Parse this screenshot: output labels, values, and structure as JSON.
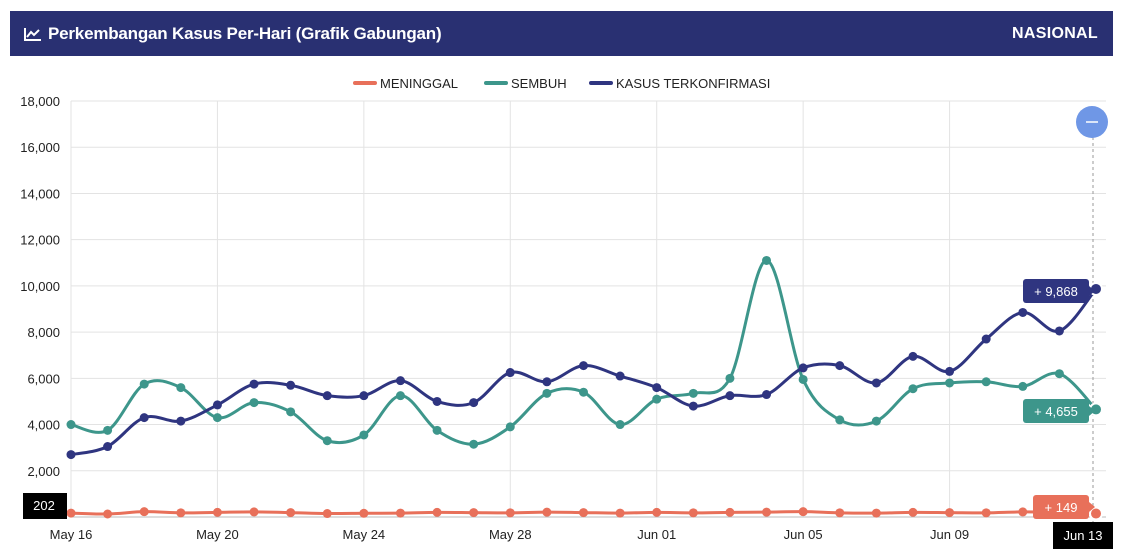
{
  "header": {
    "title": "Perkembangan Kasus Per-Hari (Grafik Gabungan)",
    "title_icon": "line-chart-icon",
    "region": "NASIONAL"
  },
  "zoom_button": {
    "icon": "minus-icon",
    "color": "#6f97e6"
  },
  "chart_data": {
    "type": "line",
    "title": "Perkembangan Kasus Per-Hari (Grafik Gabungan)",
    "categories": [
      "May 16",
      "May 17",
      "May 18",
      "May 19",
      "May 20",
      "May 21",
      "May 22",
      "May 23",
      "May 24",
      "May 25",
      "May 26",
      "May 27",
      "May 28",
      "May 29",
      "May 30",
      "May 31",
      "Jun 01",
      "Jun 02",
      "Jun 03",
      "Jun 04",
      "Jun 05",
      "Jun 06",
      "Jun 07",
      "Jun 08",
      "Jun 09",
      "Jun 10",
      "Jun 11",
      "Jun 12",
      "Jun 13"
    ],
    "tick_labels": [
      "May 16",
      "May 20",
      "May 24",
      "May 28",
      "Jun 01",
      "Jun 05",
      "Jun 09"
    ],
    "last_tick_label": "Jun 13",
    "ylim": [
      0,
      18000
    ],
    "yticks": [
      0,
      2000,
      4000,
      6000,
      8000,
      10000,
      12000,
      14000,
      16000,
      18000
    ],
    "ytick_labels": [
      "0",
      "2,000",
      "4,000",
      "6,000",
      "8,000",
      "10,000",
      "12,000",
      "14,000",
      "16,000",
      "18,000"
    ],
    "grid": true,
    "legend_position": "top-center",
    "series": [
      {
        "name": "MENINGGAL",
        "color": "#e8705a",
        "values": [
          170,
          130,
          230,
          180,
          200,
          220,
          190,
          150,
          160,
          170,
          200,
          190,
          180,
          210,
          190,
          170,
          200,
          180,
          200,
          210,
          230,
          180,
          170,
          200,
          190,
          180,
          220,
          200,
          149
        ]
      },
      {
        "name": "SEMBUH",
        "color": "#3d968b",
        "values": [
          4000,
          3750,
          5750,
          5600,
          4300,
          4950,
          4550,
          3300,
          3550,
          5250,
          3750,
          3150,
          3900,
          5350,
          5400,
          4000,
          5100,
          5350,
          6000,
          11100,
          5950,
          4200,
          4150,
          5550,
          5800,
          5850,
          5650,
          6200,
          4655
        ]
      },
      {
        "name": "KASUS TERKONFIRMASI",
        "color": "#2f3580",
        "values": [
          2700,
          3050,
          4300,
          4150,
          4850,
          5750,
          5700,
          5250,
          5250,
          5900,
          5000,
          4950,
          6250,
          5850,
          6550,
          6100,
          5600,
          4800,
          5250,
          5300,
          6450,
          6550,
          5800,
          6950,
          6300,
          7700,
          8850,
          8050,
          9868
        ]
      }
    ],
    "tooltips": {
      "left_value": "202",
      "meninggal": "+ 149",
      "sembuh": "+ 4,655",
      "terkonfirmasi": "+ 9,868"
    }
  }
}
